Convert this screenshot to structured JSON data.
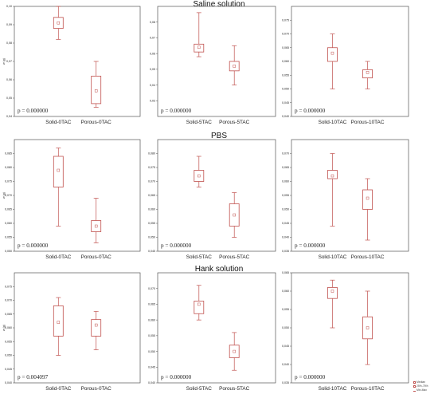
{
  "figure": {
    "row_titles": [
      "Saline solution",
      "PBS",
      "Hank solution"
    ],
    "legend": {
      "items": [
        {
          "label": "Median",
          "icon": "square-icon"
        },
        {
          "label": "25%-75%",
          "icon": "box-icon"
        },
        {
          "label": "Min-Max",
          "icon": "whisker-icon"
        }
      ]
    },
    "colors": {
      "box": "#c0504d",
      "text": "#222222",
      "axis": "#555555"
    }
  },
  "chart_data": [
    {
      "type": "box",
      "row_title": "Saline solution",
      "ylabel": "w (g)",
      "ylim": [
        0.04,
        0.1
      ],
      "yticks": [
        0.04,
        0.05,
        0.06,
        0.07,
        0.08,
        0.09,
        0.1
      ],
      "ytick_labels": [
        "0,04",
        "0,05",
        "0,06",
        "0,07",
        "0,08",
        "0,09",
        "0,10"
      ],
      "categories": [
        "Solid-0TAC",
        "Porous-0TAC"
      ],
      "boxes": [
        {
          "min": 0.082,
          "q1": 0.088,
          "median": 0.091,
          "q3": 0.094,
          "max": 0.1
        },
        {
          "min": 0.045,
          "q1": 0.047,
          "median": 0.054,
          "q3": 0.062,
          "max": 0.07
        }
      ],
      "annotation": "p = 0.000000"
    },
    {
      "type": "box",
      "ylabel": "",
      "ylim": [
        0.02,
        0.09
      ],
      "yticks": [
        0.03,
        0.04,
        0.05,
        0.06,
        0.07,
        0.08
      ],
      "ytick_labels": [
        "0,03",
        "0,04",
        "0,05",
        "0,06",
        "0,07",
        "0,08"
      ],
      "categories": [
        "Solid-5TAC",
        "Porous-5TAC"
      ],
      "boxes": [
        {
          "min": 0.058,
          "q1": 0.061,
          "median": 0.064,
          "q3": 0.066,
          "max": 0.086
        },
        {
          "min": 0.04,
          "q1": 0.049,
          "median": 0.052,
          "q3": 0.055,
          "max": 0.065
        }
      ],
      "annotation": "p = 0.000000"
    },
    {
      "type": "box",
      "ylabel": "",
      "ylim": [
        0.04,
        0.08
      ],
      "yticks": [
        0.04,
        0.045,
        0.05,
        0.055,
        0.06,
        0.065,
        0.07,
        0.075
      ],
      "ytick_labels": [
        "0,040",
        "0,045",
        "0,050",
        "0,055",
        "0,060",
        "0,065",
        "0,070",
        "0,075"
      ],
      "categories": [
        "Solid-10TAC",
        "Porous-10TAC"
      ],
      "boxes": [
        {
          "min": 0.05,
          "q1": 0.06,
          "median": 0.063,
          "q3": 0.065,
          "max": 0.07
        },
        {
          "min": 0.05,
          "q1": 0.054,
          "median": 0.056,
          "q3": 0.057,
          "max": 0.06
        }
      ],
      "annotation": "p = 0.000000"
    },
    {
      "type": "box",
      "row_title": "PBS",
      "ylabel": "w (g)",
      "ylim": [
        0.05,
        0.09
      ],
      "yticks": [
        0.05,
        0.055,
        0.06,
        0.065,
        0.07,
        0.075,
        0.08,
        0.085
      ],
      "ytick_labels": [
        "0,050",
        "0,055",
        "0,060",
        "0,065",
        "0,070",
        "0,075",
        "0,080",
        "0,085"
      ],
      "categories": [
        "Solid-0TAC",
        "Porous-0TAC"
      ],
      "boxes": [
        {
          "min": 0.059,
          "q1": 0.073,
          "median": 0.079,
          "q3": 0.084,
          "max": 0.087
        },
        {
          "min": 0.053,
          "q1": 0.057,
          "median": 0.059,
          "q3": 0.061,
          "max": 0.069
        }
      ],
      "annotation": "p = 0.000000"
    },
    {
      "type": "box",
      "ylabel": "",
      "ylim": [
        0.045,
        0.085
      ],
      "yticks": [
        0.045,
        0.05,
        0.055,
        0.06,
        0.065,
        0.07,
        0.075,
        0.08
      ],
      "ytick_labels": [
        "0,045",
        "0,050",
        "0,055",
        "0,060",
        "0,065",
        "0,070",
        "0,075",
        "0,080"
      ],
      "categories": [
        "Solid-5TAC",
        "Porous-5TAC"
      ],
      "boxes": [
        {
          "min": 0.068,
          "q1": 0.07,
          "median": 0.072,
          "q3": 0.074,
          "max": 0.079
        },
        {
          "min": 0.05,
          "q1": 0.054,
          "median": 0.058,
          "q3": 0.062,
          "max": 0.066
        }
      ],
      "annotation": "p = 0.000000"
    },
    {
      "type": "box",
      "ylabel": "",
      "ylim": [
        0.035,
        0.075
      ],
      "yticks": [
        0.035,
        0.04,
        0.045,
        0.05,
        0.055,
        0.06,
        0.065,
        0.07
      ],
      "ytick_labels": [
        "0,035",
        "0,040",
        "0,045",
        "0,050",
        "0,055",
        "0,060",
        "0,065",
        "0,070"
      ],
      "categories": [
        "Solid-10TAC",
        "Porous-10TAC"
      ],
      "boxes": [
        {
          "min": 0.044,
          "q1": 0.061,
          "median": 0.062,
          "q3": 0.064,
          "max": 0.07
        },
        {
          "min": 0.039,
          "q1": 0.05,
          "median": 0.054,
          "q3": 0.057,
          "max": 0.061
        }
      ],
      "annotation": "p = 0.000000"
    },
    {
      "type": "box",
      "row_title": "Hank solution",
      "ylabel": "w (g)",
      "ylim": [
        0.04,
        0.08
      ],
      "yticks": [
        0.04,
        0.045,
        0.05,
        0.055,
        0.06,
        0.065,
        0.07,
        0.075
      ],
      "ytick_labels": [
        "0,040",
        "0,045",
        "0,050",
        "0,055",
        "0,060",
        "0,065",
        "0,070",
        "0,075"
      ],
      "categories": [
        "Solid-0TAC",
        "Porous-0TAC"
      ],
      "boxes": [
        {
          "min": 0.05,
          "q1": 0.057,
          "median": 0.062,
          "q3": 0.068,
          "max": 0.071
        },
        {
          "min": 0.052,
          "q1": 0.057,
          "median": 0.061,
          "q3": 0.063,
          "max": 0.066
        }
      ],
      "annotation": "p = 0.004097"
    },
    {
      "type": "box",
      "ylabel": "",
      "ylim": [
        0.04,
        0.075
      ],
      "yticks": [
        0.04,
        0.045,
        0.05,
        0.055,
        0.06,
        0.065,
        0.07
      ],
      "ytick_labels": [
        "0,040",
        "0,045",
        "0,050",
        "0,055",
        "0,060",
        "0,065",
        "0,070"
      ],
      "categories": [
        "Solid-5TAC",
        "Porous-5TAC"
      ],
      "boxes": [
        {
          "min": 0.06,
          "q1": 0.062,
          "median": 0.065,
          "q3": 0.066,
          "max": 0.071
        },
        {
          "min": 0.044,
          "q1": 0.048,
          "median": 0.05,
          "q3": 0.052,
          "max": 0.056
        }
      ],
      "annotation": "p = 0.000000"
    },
    {
      "type": "box",
      "ylabel": "",
      "ylim": [
        0.035,
        0.065
      ],
      "yticks": [
        0.035,
        0.04,
        0.045,
        0.05,
        0.055,
        0.06,
        0.065
      ],
      "ytick_labels": [
        "0,035",
        "0,040",
        "0,045",
        "0,050",
        "0,055",
        "0,060",
        "0,065"
      ],
      "categories": [
        "Solid-10TAC",
        "Porous-10TAC"
      ],
      "boxes": [
        {
          "min": 0.05,
          "q1": 0.058,
          "median": 0.06,
          "q3": 0.061,
          "max": 0.063
        },
        {
          "min": 0.04,
          "q1": 0.047,
          "median": 0.05,
          "q3": 0.053,
          "max": 0.06
        }
      ],
      "annotation": "p = 0.000000"
    }
  ]
}
